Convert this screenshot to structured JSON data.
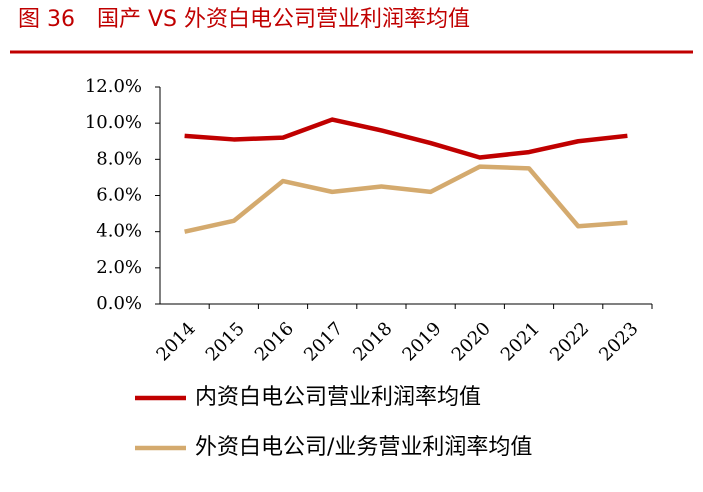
{
  "chart_data": {
    "type": "line",
    "title": "图 36　国产 VS 外资白电公司营业利润率均值",
    "categories": [
      "2014",
      "2015",
      "2016",
      "2017",
      "2018",
      "2019",
      "2020",
      "2021",
      "2022",
      "2023"
    ],
    "series": [
      {
        "name": "内资白电公司营业利润率均值",
        "color": "#c00000",
        "values": [
          9.3,
          9.1,
          9.2,
          10.2,
          9.6,
          8.9,
          8.1,
          8.4,
          9.0,
          9.3
        ]
      },
      {
        "name": "外资白电公司/业务营业利润率均值",
        "color": "#d4aa6e",
        "values": [
          4.0,
          4.6,
          6.8,
          6.2,
          6.5,
          6.2,
          7.6,
          7.5,
          4.3,
          4.5
        ]
      }
    ],
    "ylim": [
      0,
      12
    ],
    "yticks": [
      {
        "value": 0,
        "label": "0.0%"
      },
      {
        "value": 2,
        "label": "2.0%"
      },
      {
        "value": 4,
        "label": "4.0%"
      },
      {
        "value": 6,
        "label": "6.0%"
      },
      {
        "value": 8,
        "label": "8.0%"
      },
      {
        "value": 10,
        "label": "10.0%"
      },
      {
        "value": 12,
        "label": "12.0%"
      }
    ],
    "grid": false,
    "legend": "bottom"
  }
}
